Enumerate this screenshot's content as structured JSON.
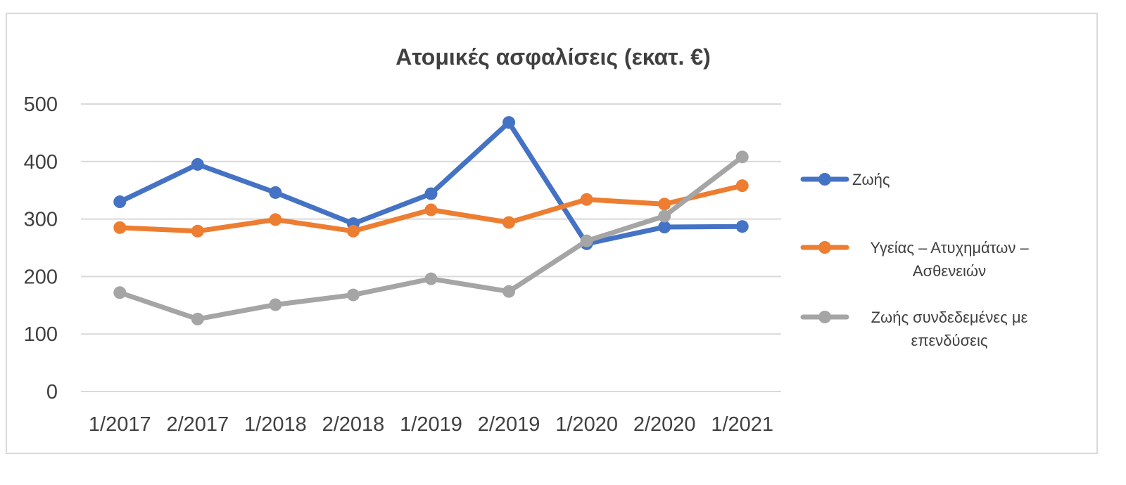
{
  "chart_data": {
    "type": "line",
    "title": "Ατομικές ασφαλίσεις (εκατ. €)",
    "xlabel": "",
    "ylabel": "",
    "categories": [
      "1/2017",
      "2/2017",
      "1/2018",
      "2/2018",
      "1/2019",
      "2/2019",
      "1/2020",
      "2/2020",
      "1/2021"
    ],
    "ylim": [
      0,
      500
    ],
    "yticks": [
      "0",
      "100",
      "200",
      "300",
      "400",
      "500"
    ],
    "grid": true,
    "legend_position": "right",
    "series": [
      {
        "name": "Ζωής",
        "legend_lines": [
          "Ζωής"
        ],
        "color": "#4472C4",
        "values": [
          330,
          395,
          346,
          292,
          344,
          468,
          257,
          286,
          287
        ]
      },
      {
        "name": "Υγείας – Ατυχημάτων – Ασθενειών",
        "legend_lines": [
          "Υγείας – Ατυχημάτων –",
          "Ασθενειών"
        ],
        "color": "#ED7D31",
        "values": [
          285,
          279,
          299,
          279,
          316,
          294,
          334,
          326,
          358
        ]
      },
      {
        "name": "Ζωής συνδεδεμένες με επενδύσεις",
        "legend_lines": [
          "Ζωής συνδεδεμένες με",
          "επενδύσεις"
        ],
        "color": "#A5A5A5",
        "values": [
          172,
          126,
          151,
          168,
          196,
          174,
          262,
          305,
          408
        ]
      }
    ]
  }
}
